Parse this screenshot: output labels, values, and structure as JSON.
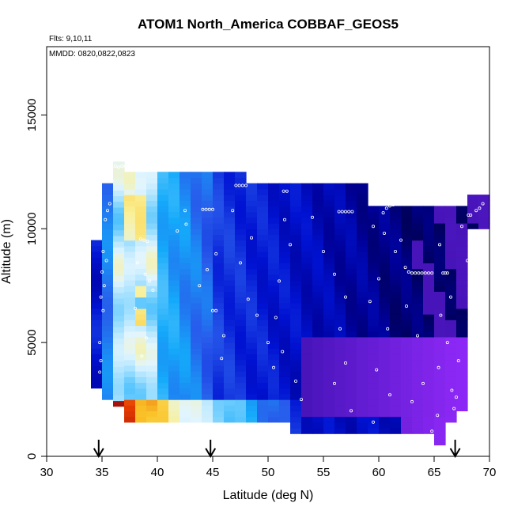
{
  "chart_data": {
    "type": "heatmap",
    "title": "ATOM1 North_America COBBAF_GEOS5",
    "flights_note": "Flts: 9,10,11",
    "date_note": "MMDD: 0820,0822,0823",
    "xlabel": "Latitude (deg N)",
    "ylabel": "Altitude (m)",
    "xlim": [
      30,
      70
    ],
    "ylim": [
      0,
      18000
    ],
    "x_ticks": [
      30,
      35,
      40,
      45,
      50,
      55,
      60,
      65,
      70
    ],
    "y_ticks": [
      0,
      5000,
      10000,
      15000
    ],
    "grid": false,
    "arrows_at_latitude": [
      34.7,
      44.8,
      66.9
    ],
    "observation_points": [
      [
        36.2,
        12750
      ],
      [
        36.5,
        12700
      ],
      [
        36.8,
        12750
      ],
      [
        37.1,
        12750
      ],
      [
        35.6,
        12500
      ],
      [
        35.9,
        12100
      ],
      [
        35.7,
        11100
      ],
      [
        35.5,
        10800
      ],
      [
        35.3,
        10400
      ],
      [
        35.1,
        9000
      ],
      [
        35.4,
        8600
      ],
      [
        35.0,
        8100
      ],
      [
        35.2,
        7500
      ],
      [
        34.9,
        7000
      ],
      [
        35.1,
        6400
      ],
      [
        34.8,
        5000
      ],
      [
        34.9,
        4200
      ],
      [
        34.8,
        3700
      ],
      [
        38.5,
        9550
      ],
      [
        38.8,
        9500
      ],
      [
        39.1,
        9450
      ],
      [
        38.2,
        8500
      ],
      [
        38.9,
        8000
      ],
      [
        39.3,
        7700
      ],
      [
        39.6,
        7300
      ],
      [
        38.0,
        6500
      ],
      [
        39.0,
        5200
      ],
      [
        38.6,
        4400
      ],
      [
        42.5,
        10800
      ],
      [
        42.6,
        10200
      ],
      [
        41.8,
        9900
      ],
      [
        44.1,
        10850
      ],
      [
        44.4,
        10850
      ],
      [
        44.7,
        10850
      ],
      [
        45.0,
        10850
      ],
      [
        45.3,
        8900
      ],
      [
        44.5,
        8200
      ],
      [
        43.8,
        7500
      ],
      [
        45.0,
        6400
      ],
      [
        45.3,
        6400
      ],
      [
        46.0,
        5300
      ],
      [
        45.8,
        4300
      ],
      [
        47.1,
        11900
      ],
      [
        47.4,
        11900
      ],
      [
        47.7,
        11900
      ],
      [
        48.0,
        11900
      ],
      [
        46.8,
        10800
      ],
      [
        48.5,
        9600
      ],
      [
        47.5,
        8500
      ],
      [
        48.2,
        6900
      ],
      [
        49.0,
        6200
      ],
      [
        50.0,
        5000
      ],
      [
        50.5,
        3900
      ],
      [
        51.4,
        11650
      ],
      [
        51.7,
        11650
      ],
      [
        51.5,
        10400
      ],
      [
        52.0,
        9300
      ],
      [
        51.0,
        7700
      ],
      [
        50.7,
        6100
      ],
      [
        51.3,
        4600
      ],
      [
        52.5,
        3300
      ],
      [
        53.0,
        2500
      ],
      [
        56.4,
        10750
      ],
      [
        56.7,
        10750
      ],
      [
        57.0,
        10750
      ],
      [
        57.3,
        10750
      ],
      [
        57.6,
        10750
      ],
      [
        54.0,
        10500
      ],
      [
        55.0,
        9000
      ],
      [
        56.0,
        8000
      ],
      [
        57.0,
        7000
      ],
      [
        56.5,
        5600
      ],
      [
        57.0,
        4100
      ],
      [
        56.0,
        3200
      ],
      [
        57.5,
        2000
      ],
      [
        60.4,
        10700
      ],
      [
        60.7,
        10900
      ],
      [
        61.0,
        11000
      ],
      [
        61.3,
        11050
      ],
      [
        59.5,
        10100
      ],
      [
        60.5,
        9800
      ],
      [
        61.5,
        9000
      ],
      [
        60.0,
        7800
      ],
      [
        59.2,
        6800
      ],
      [
        60.8,
        5600
      ],
      [
        59.8,
        3800
      ],
      [
        61.0,
        2700
      ],
      [
        59.5,
        1500
      ],
      [
        62.0,
        9500
      ],
      [
        62.4,
        8300
      ],
      [
        62.7,
        8100
      ],
      [
        63.0,
        8050
      ],
      [
        63.3,
        8050
      ],
      [
        63.6,
        8050
      ],
      [
        63.9,
        8050
      ],
      [
        64.2,
        8050
      ],
      [
        64.5,
        8050
      ],
      [
        64.8,
        8050
      ],
      [
        62.5,
        6600
      ],
      [
        63.5,
        5300
      ],
      [
        64.0,
        3200
      ],
      [
        63.0,
        2400
      ],
      [
        64.8,
        1100
      ],
      [
        65.8,
        8050
      ],
      [
        66.0,
        8050
      ],
      [
        66.2,
        8050
      ],
      [
        65.5,
        9300
      ],
      [
        66.5,
        7000
      ],
      [
        65.6,
        6200
      ],
      [
        66.2,
        5000
      ],
      [
        65.4,
        3900
      ],
      [
        66.6,
        2900
      ],
      [
        65.3,
        1800
      ],
      [
        67.0,
        2600
      ],
      [
        66.8,
        2100
      ],
      [
        67.2,
        4200
      ],
      [
        67.5,
        10100
      ],
      [
        68.1,
        10600
      ],
      [
        68.3,
        10600
      ],
      [
        68.8,
        10800
      ],
      [
        69.1,
        10900
      ],
      [
        69.4,
        11100
      ],
      [
        68.0,
        8600
      ]
    ]
  }
}
